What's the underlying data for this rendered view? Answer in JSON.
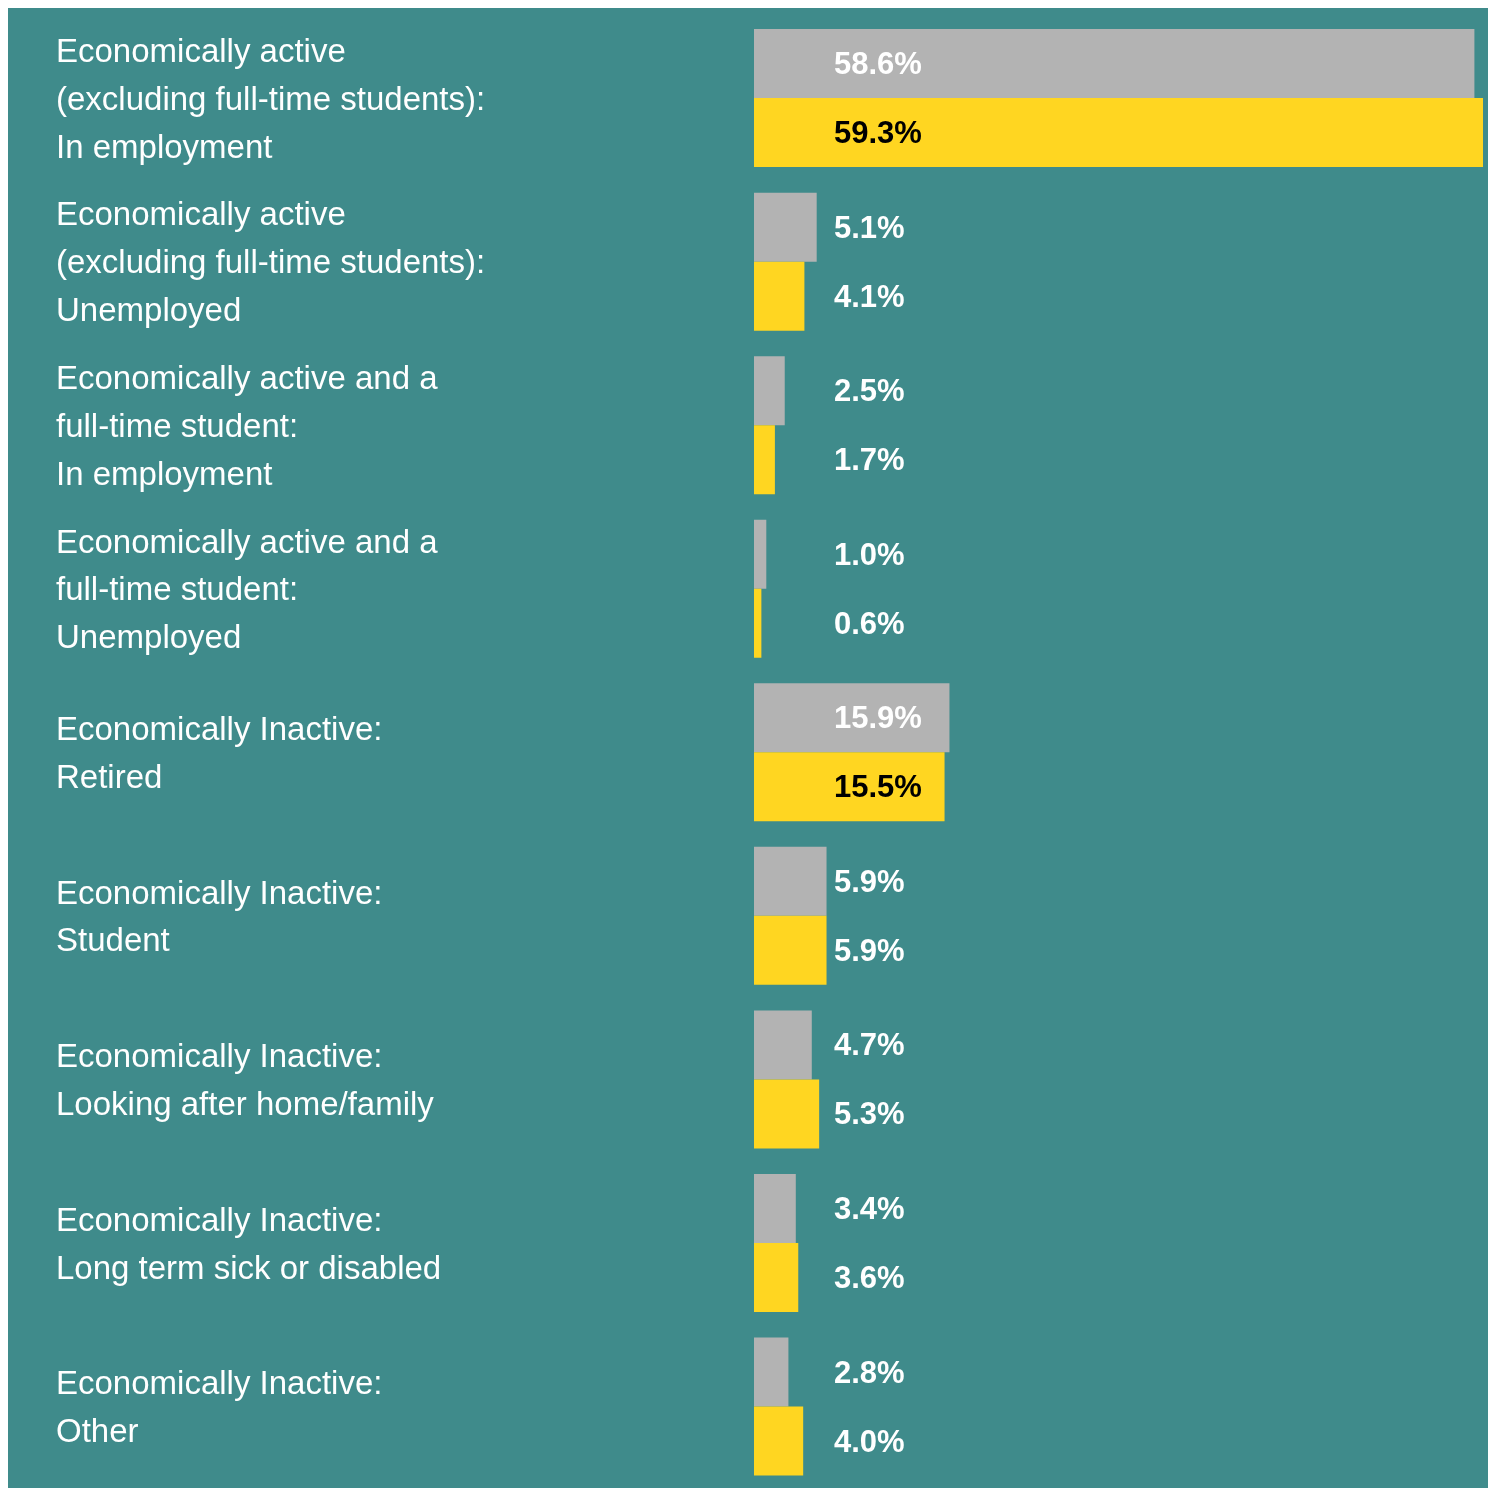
{
  "chart_data": {
    "type": "bar",
    "orientation": "horizontal",
    "categories": [
      "Economically active (excluding full-time students): In employment",
      "Economically active (excluding full-time students): Unemployed",
      "Economically active and a full-time student: In employment",
      "Economically active and a full-time student: Unemployed",
      "Economically Inactive: Retired",
      "Economically Inactive: Student",
      "Economically Inactive: Looking after home/family",
      "Economically Inactive: Long term sick or disabled",
      "Economically Inactive: Other"
    ],
    "series": [
      {
        "color": "#b3b3b3",
        "values": [
          58.6,
          5.1,
          2.5,
          1.0,
          15.9,
          5.9,
          4.7,
          3.4,
          2.8
        ],
        "value_labels": [
          "58.6%",
          "5.1%",
          "2.5%",
          "1.0%",
          "15.9%",
          "5.9%",
          "4.7%",
          "3.4%",
          "2.8%"
        ]
      },
      {
        "color": "#ffd621",
        "values": [
          59.3,
          4.1,
          1.7,
          0.6,
          15.5,
          5.9,
          5.3,
          3.6,
          4.0
        ],
        "value_labels": [
          "59.3%",
          "4.1%",
          "1.7%",
          "0.6%",
          "15.5%",
          "5.9%",
          "5.3%",
          "3.6%",
          "4.0%"
        ]
      }
    ]
  }
}
